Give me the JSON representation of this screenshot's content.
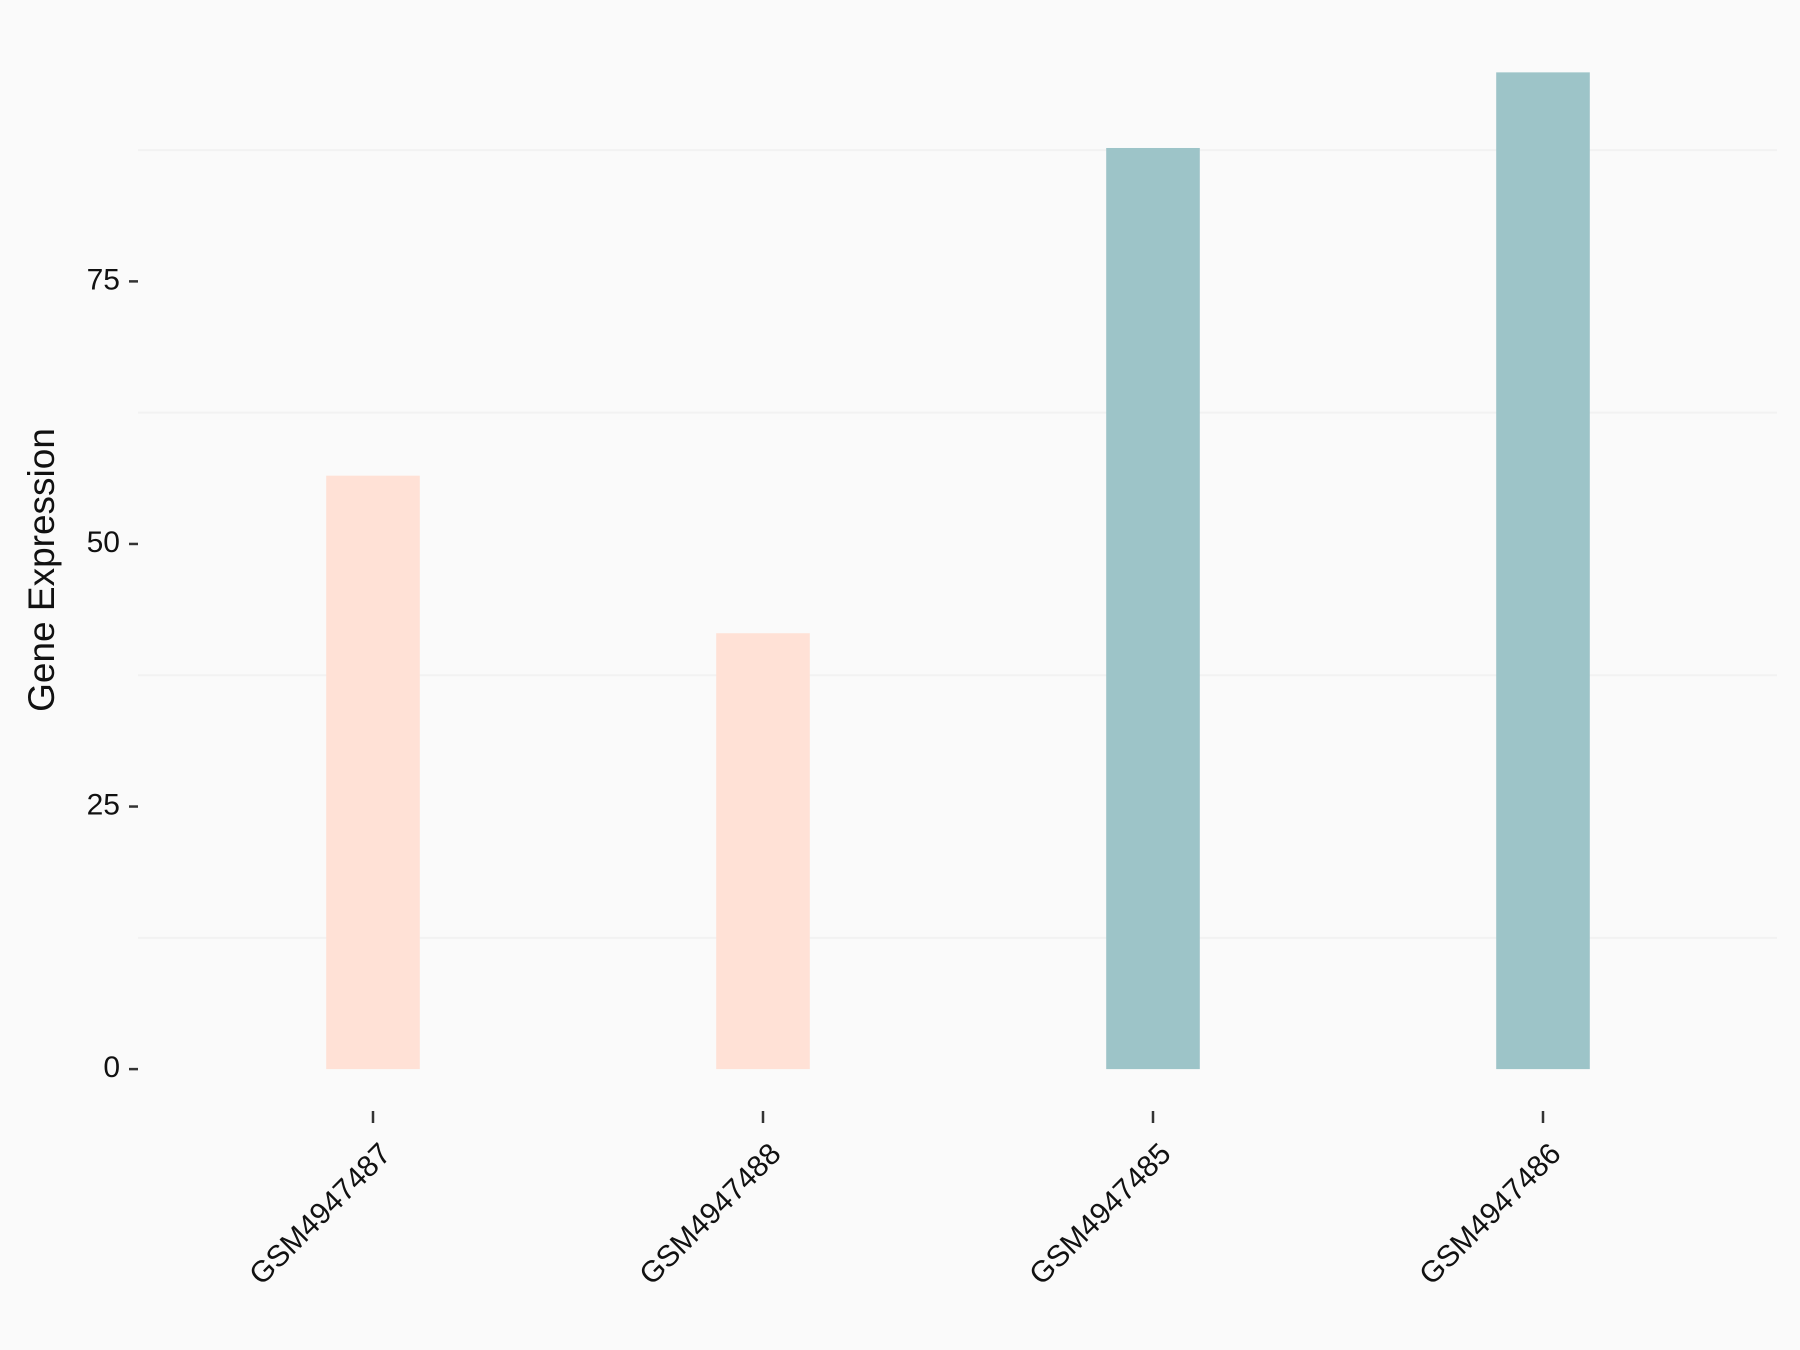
{
  "chart_data": {
    "type": "bar",
    "y_label": "Gene Expression",
    "categories": [
      "GSM4947487",
      "GSM4947488",
      "GSM4947485",
      "GSM4947486"
    ],
    "values": [
      56.5,
      41.5,
      87.7,
      94.9
    ],
    "colors": [
      "#ffe1d6",
      "#ffe1d6",
      "#9dc4c8",
      "#9dc4c8"
    ],
    "ylim": [
      -4.75,
      99.6
    ],
    "yticks": [
      0,
      25,
      50,
      75
    ],
    "minor_grid": [
      12.5,
      37.5,
      62.5,
      87.5
    ]
  }
}
